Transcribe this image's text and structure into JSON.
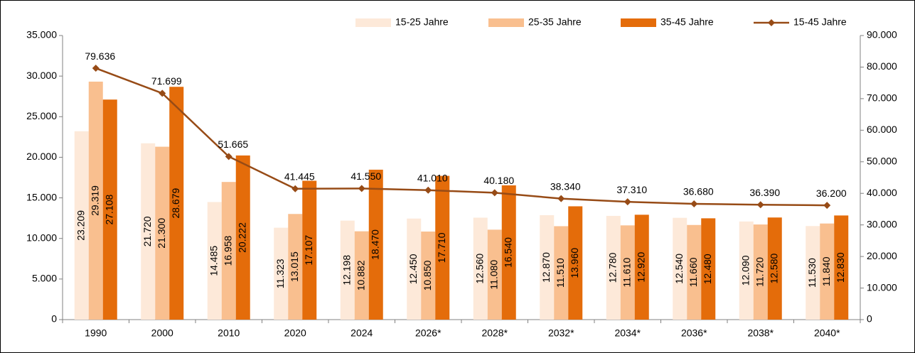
{
  "chart_data": {
    "type": "bar",
    "categories": [
      "1990",
      "2000",
      "2010",
      "2020",
      "2024",
      "2026*",
      "2028*",
      "2032*",
      "2034*",
      "2036*",
      "2038*",
      "2040*"
    ],
    "series": [
      {
        "name": "15-25 Jahre",
        "color": "#fde9d9",
        "type": "bar",
        "values": [
          23209,
          21720,
          14485,
          11323,
          12198,
          12450,
          12560,
          12870,
          12780,
          12540,
          12090,
          11530
        ],
        "value_labels": [
          "23.209",
          "21.720",
          "14.485",
          "11.323",
          "12.198",
          "12.450",
          "12.560",
          "12.870",
          "12.780",
          "12.540",
          "12.090",
          "11.530"
        ]
      },
      {
        "name": "25-35 Jahre",
        "color": "#f9bf8f",
        "type": "bar",
        "values": [
          29319,
          21300,
          16958,
          13015,
          10882,
          10850,
          11080,
          11510,
          11610,
          11660,
          11720,
          11840
        ],
        "value_labels": [
          "29.319",
          "21.300",
          "16.958",
          "13.015",
          "10.882",
          "10.850",
          "11.080",
          "11.510",
          "11.610",
          "11.660",
          "11.720",
          "11.840"
        ]
      },
      {
        "name": "35-45 Jahre",
        "color": "#e46c0a",
        "type": "bar",
        "values": [
          27108,
          28679,
          20222,
          17107,
          18470,
          17710,
          16540,
          13960,
          12920,
          12480,
          12580,
          12830
        ],
        "value_labels": [
          "27.108",
          "28.679",
          "20.222",
          "17.107",
          "18.470",
          "17.710",
          "16.540",
          "13.960",
          "12.920",
          "12.480",
          "12.580",
          "12.830"
        ]
      },
      {
        "name": "15-45 Jahre",
        "color": "#974b16",
        "type": "line",
        "axis": "y2",
        "values": [
          79636,
          71699,
          51665,
          41445,
          41550,
          41010,
          40180,
          38340,
          37310,
          36680,
          36390,
          36200
        ],
        "value_labels": [
          "79.636",
          "71.699",
          "51.665",
          "41.445",
          "41.550",
          "41.010",
          "40.180",
          "38.340",
          "37.310",
          "36.680",
          "36.390",
          "36.200"
        ]
      }
    ],
    "ylim": [
      0,
      35000
    ],
    "yticks": [
      0,
      {
        "value": 5000,
        "label": "5.000"
      },
      {
        "value": 10000,
        "label": "10.000"
      },
      {
        "value": 15000,
        "label": "15.000"
      },
      {
        "value": 20000,
        "label": "20.000"
      },
      {
        "value": 25000,
        "label": "25.000"
      },
      {
        "value": 30000,
        "label": "30.000"
      },
      {
        "value": 35000,
        "label": "35.000"
      }
    ],
    "y2lim": [
      0,
      90000
    ],
    "y2ticks": [
      0,
      {
        "value": 10000,
        "label": "10.000"
      },
      {
        "value": 20000,
        "label": "20.000"
      },
      {
        "value": 30000,
        "label": "30.000"
      },
      {
        "value": 40000,
        "label": "40.000"
      },
      {
        "value": 50000,
        "label": "50.000"
      },
      {
        "value": 60000,
        "label": "60.000"
      },
      {
        "value": 70000,
        "label": "70.000"
      },
      {
        "value": 80000,
        "label": "80.000"
      },
      {
        "value": 90000,
        "label": "90.000"
      }
    ],
    "legend": "top",
    "grid": false
  }
}
